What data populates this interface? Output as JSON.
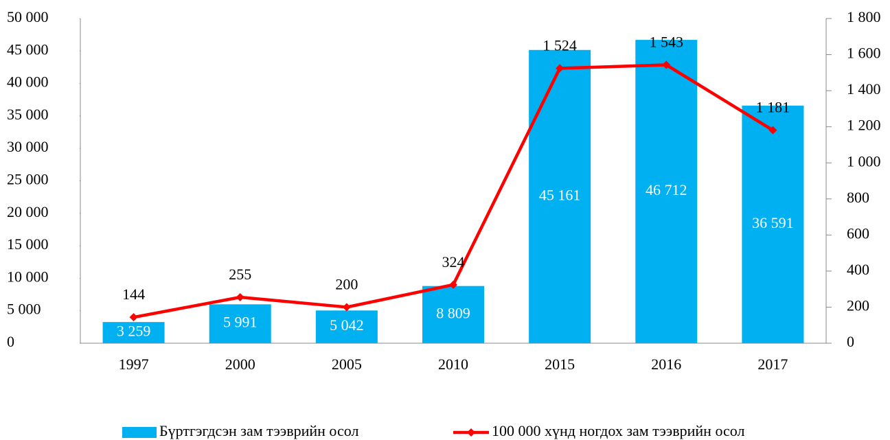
{
  "chart_data": {
    "type": "bar",
    "categories": [
      "1997",
      "2000",
      "2005",
      "2010",
      "2015",
      "2016",
      "2017"
    ],
    "series": [
      {
        "name": "Бүртгэгдсэн зам тээврийн осол",
        "color": "#00b0f0",
        "values": [
          3259,
          5991,
          5042,
          8809,
          45161,
          46712,
          36591
        ],
        "value_labels": [
          "3 259",
          "5 991",
          "5 042",
          "8 809",
          "45 161",
          "46 712",
          "36 591"
        ]
      },
      {
        "name": "100 000 хүнд ногдох зам тээврийн осол",
        "color": "#ff0000",
        "type": "line",
        "axis": "y2",
        "values": [
          144,
          255,
          200,
          324,
          1524,
          1543,
          1181
        ],
        "value_labels": [
          "144",
          "255",
          "200",
          "324",
          "1 524",
          "1 543",
          "1 181"
        ]
      }
    ],
    "ylim": [
      0,
      50000
    ],
    "yticks": [
      0,
      {
        "value": 5000,
        "label": "5 000"
      },
      {
        "value": 10000,
        "label": "10 000"
      },
      {
        "value": 15000,
        "label": "15 000"
      },
      {
        "value": 20000,
        "label": "20 000"
      },
      {
        "value": 25000,
        "label": "25 000"
      },
      {
        "value": 30000,
        "label": "30 000"
      },
      {
        "value": 35000,
        "label": "35 000"
      },
      {
        "value": 40000,
        "label": "40 000"
      },
      {
        "value": 45000,
        "label": "45 000"
      },
      {
        "value": 50000,
        "label": "50 000"
      }
    ],
    "y2lim": [
      0,
      1800
    ],
    "y2ticks": [
      0,
      200,
      400,
      600,
      800,
      {
        "value": 1000,
        "label": "1 000"
      },
      {
        "value": 1200,
        "label": "1 200"
      },
      {
        "value": 1400,
        "label": "1 400"
      },
      {
        "value": 1600,
        "label": "1 600"
      },
      {
        "value": 1800,
        "label": "1 800"
      }
    ],
    "legend": "bottom"
  }
}
